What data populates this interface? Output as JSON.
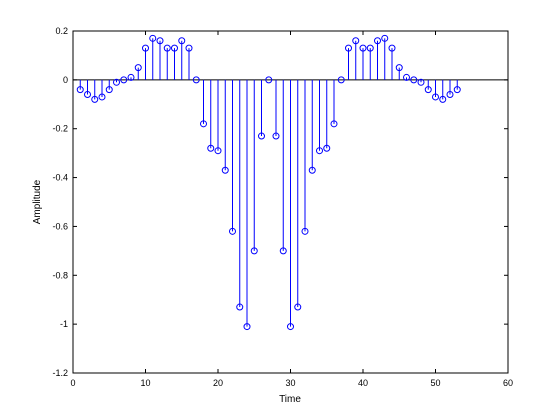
{
  "chart_data": {
    "type": "stem",
    "title": "",
    "xlabel": "Time",
    "ylabel": "Amplitude",
    "xlim": [
      0,
      60
    ],
    "ylim": [
      -1.2,
      0.2
    ],
    "xticks": [
      0,
      10,
      20,
      30,
      40,
      50,
      60
    ],
    "yticks": [
      -1.2,
      -1,
      -0.8,
      -0.6,
      -0.4,
      -0.2,
      0,
      0.2
    ],
    "xtick_labels": [
      "0",
      "10",
      "20",
      "30",
      "40",
      "50",
      "60"
    ],
    "ytick_labels": [
      "-1.2",
      "-1",
      "-0.8",
      "-0.6",
      "-0.4",
      "-0.2",
      "0",
      "0.2"
    ],
    "grid": false,
    "baseline": 0,
    "colors": {
      "stem": "#0000ff",
      "baseline": "#000000",
      "axes": "#000000",
      "background": "#ffffff"
    },
    "series": [
      {
        "x": [
          1,
          2,
          3,
          4,
          5,
          6,
          7,
          8,
          9,
          10,
          11,
          12,
          13,
          14,
          15,
          16,
          17,
          18,
          19,
          20,
          21,
          22,
          23,
          24,
          25,
          26,
          27,
          28,
          29,
          30,
          31,
          32,
          33,
          34,
          35,
          36,
          37,
          38,
          39,
          40,
          41,
          42,
          43,
          44,
          45,
          46,
          47,
          48,
          49,
          50,
          51,
          52,
          53
        ],
        "y": [
          -0.04,
          -0.06,
          -0.08,
          -0.07,
          -0.04,
          -0.01,
          0.0,
          0.01,
          0.05,
          0.13,
          0.17,
          0.16,
          0.13,
          0.13,
          0.16,
          0.13,
          0.0,
          -0.18,
          -0.28,
          -0.29,
          -0.37,
          -0.62,
          -0.93,
          -1.01,
          -0.7,
          -0.23,
          0.0,
          -0.23,
          -0.7,
          -1.01,
          -0.93,
          -0.62,
          -0.37,
          -0.29,
          -0.28,
          -0.18,
          0.0,
          0.13,
          0.16,
          0.13,
          0.13,
          0.16,
          0.17,
          0.13,
          0.05,
          0.01,
          0.0,
          -0.01,
          -0.04,
          -0.07,
          -0.08,
          -0.06,
          -0.04
        ]
      }
    ]
  }
}
